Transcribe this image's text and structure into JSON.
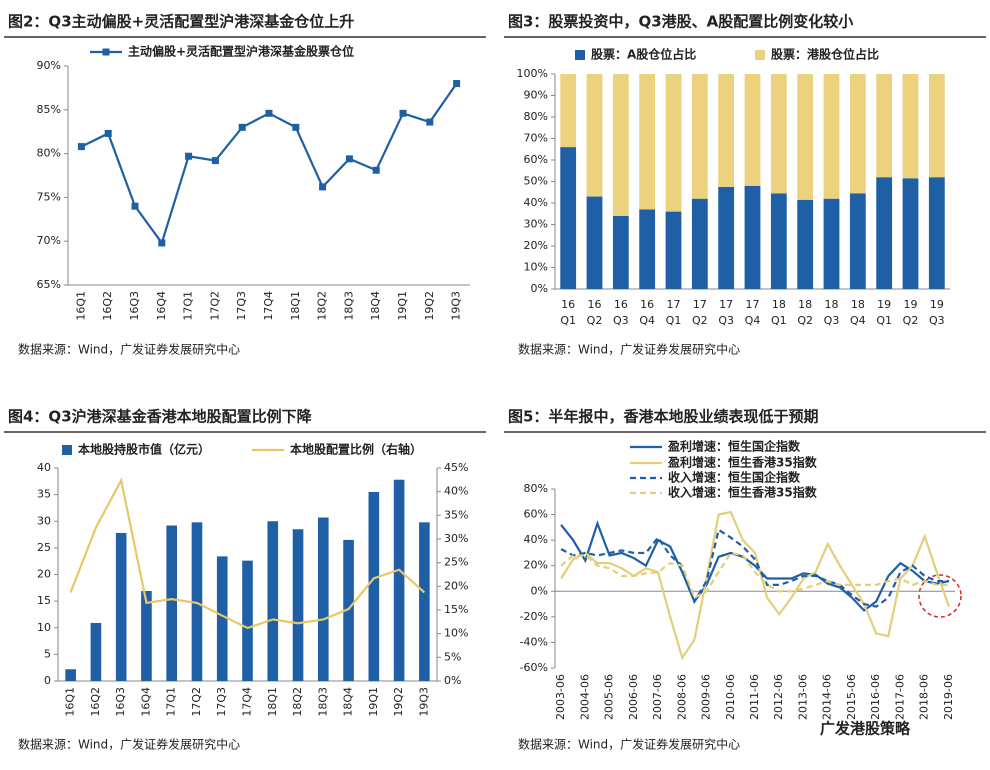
{
  "chart_data": [
    {
      "type": "line",
      "title": "图2：Q3主动偏股+灵活配置型沪港深基金仓位上升",
      "source": "数据来源：Wind，广发证券发展研究中心",
      "legend": "top",
      "categories": [
        "16Q1",
        "16Q2",
        "16Q3",
        "16Q4",
        "17Q1",
        "17Q2",
        "17Q3",
        "17Q4",
        "18Q1",
        "18Q2",
        "18Q3",
        "18Q4",
        "19Q1",
        "19Q2",
        "19Q3"
      ],
      "series": [
        {
          "name": "主动偏股+灵活配置型沪港深基金股票仓位",
          "color": "#1f5fa5",
          "marker": true,
          "values": [
            80.8,
            82.3,
            74,
            69.8,
            79.7,
            79.2,
            83,
            84.6,
            83,
            76.2,
            79.4,
            78.1,
            84.6,
            83.6,
            88
          ]
        }
      ],
      "ylim": [
        65,
        90
      ],
      "yticks": [
        {
          "value": 65,
          "label": "65%"
        },
        {
          "value": 70,
          "label": "70%"
        },
        {
          "value": 75,
          "label": "75%"
        },
        {
          "value": 80,
          "label": "80%"
        },
        {
          "value": 85,
          "label": "85%"
        },
        {
          "value": 90,
          "label": "90%"
        }
      ],
      "grid": false
    },
    {
      "type": "bar",
      "stacked": true,
      "title": "图3：股票投资中，Q3港股、A股配置比例变化较小",
      "source": "数据来源：Wind，广发证券发展研究中心",
      "legend": "top",
      "categories": [
        "16 Q1",
        "16 Q2",
        "16 Q3",
        "16 Q4",
        "17 Q1",
        "17 Q2",
        "17 Q3",
        "17 Q4",
        "18 Q1",
        "18 Q2",
        "18 Q3",
        "18 Q4",
        "19 Q1",
        "19 Q2",
        "19 Q3"
      ],
      "series": [
        {
          "name": "股票：A股仓位占比",
          "color": "#1f5fa5",
          "values": [
            66,
            43,
            34,
            37,
            36,
            42,
            47.5,
            48,
            44.5,
            41.5,
            42,
            44.5,
            52,
            51.5,
            52
          ]
        },
        {
          "name": "股票：港股仓位占比",
          "color": "#ecd27e",
          "values": [
            34,
            57,
            66,
            63,
            64,
            58,
            52.5,
            52,
            55.5,
            58.5,
            58,
            55.5,
            48,
            48.5,
            48
          ]
        }
      ],
      "ylim": [
        0,
        100
      ],
      "yticks": [
        {
          "value": 0,
          "label": "0%"
        },
        {
          "value": 10,
          "label": "10%"
        },
        {
          "value": 20,
          "label": "20%"
        },
        {
          "value": 30,
          "label": "30%"
        },
        {
          "value": 40,
          "label": "40%"
        },
        {
          "value": 50,
          "label": "50%"
        },
        {
          "value": 60,
          "label": "60%"
        },
        {
          "value": 70,
          "label": "70%"
        },
        {
          "value": 80,
          "label": "80%"
        },
        {
          "value": 90,
          "label": "90%"
        },
        {
          "value": 100,
          "label": "100%"
        }
      ],
      "grid": false
    },
    {
      "type": "combo",
      "title": "图4：Q3沪港深基金香港本地股配置比例下降",
      "source": "数据来源：Wind，广发证券发展研究中心",
      "legend": "top",
      "categories": [
        "16Q1",
        "16Q2",
        "16Q3",
        "16Q4",
        "17Q1",
        "17Q2",
        "17Q3",
        "17Q4",
        "18Q1",
        "18Q2",
        "18Q3",
        "18Q4",
        "19Q1",
        "19Q2",
        "19Q3"
      ],
      "series": [
        {
          "name": "本地股持股市值（亿元）",
          "kind": "bar",
          "color": "#1f5fa5",
          "values": [
            2.2,
            10.9,
            27.8,
            16.9,
            29.2,
            29.8,
            23.4,
            22.6,
            30,
            28.5,
            30.7,
            26.5,
            35.5,
            37.8,
            29.8
          ]
        },
        {
          "name": "本地股配置比例（右轴）",
          "kind": "line",
          "axis": "y2",
          "color": "#e8c866",
          "marker": true,
          "values": [
            18.7,
            32.4,
            42.4,
            16.5,
            17.3,
            16.5,
            13.8,
            11.2,
            13,
            12.2,
            13,
            15.2,
            21.7,
            23.5,
            18.7
          ]
        }
      ],
      "ylim": [
        0,
        40
      ],
      "yticks": [
        0,
        5,
        10,
        15,
        20,
        25,
        30,
        35,
        40
      ],
      "y2lim": [
        0,
        45
      ],
      "y2ticks": [
        {
          "value": 0,
          "label": "0%"
        },
        {
          "value": 5,
          "label": "5%"
        },
        {
          "value": 10,
          "label": "10%"
        },
        {
          "value": 15,
          "label": "15%"
        },
        {
          "value": 20,
          "label": "20%"
        },
        {
          "value": 25,
          "label": "25%"
        },
        {
          "value": 30,
          "label": "30%"
        },
        {
          "value": 35,
          "label": "35%"
        },
        {
          "value": 40,
          "label": "40%"
        },
        {
          "value": 45,
          "label": "45%"
        }
      ],
      "grid": false
    },
    {
      "type": "line",
      "title": "图5：半年报中，香港本地股业绩表现低于预期",
      "source": "数据来源：Wind，广发证券发展研究中心",
      "watermark": "广发港股策略",
      "legend": "upper left",
      "categories": [
        "2003-06",
        null,
        "2004-06",
        null,
        "2005-06",
        null,
        "2006-06",
        null,
        "2007-06",
        null,
        "2008-06",
        null,
        "2009-06",
        null,
        "2010-06",
        null,
        "2011-06",
        null,
        "2012-06",
        null,
        "2013-06",
        null,
        "2014-06",
        null,
        "2015-06",
        null,
        "2016-06",
        null,
        "2017-06",
        null,
        "2018-06",
        null,
        "2019-06"
      ],
      "series": [
        {
          "name": "盈利增速：恒生国企指数",
          "color": "#1f5fa5",
          "dash": false,
          "values": [
            52,
            40,
            24,
            53,
            28,
            30,
            26,
            20,
            40,
            35,
            15,
            -8,
            5,
            27,
            30,
            27,
            20,
            10,
            10,
            10,
            14,
            13,
            6,
            3,
            -5,
            -15,
            -8,
            12,
            22,
            16,
            8,
            6,
            8
          ]
        },
        {
          "name": "盈利增速：恒生香港35指数",
          "color": "#e3cf7a",
          "dash": false,
          "values": [
            10,
            25,
            30,
            22,
            22,
            18,
            12,
            18,
            15,
            -20,
            -52,
            -38,
            10,
            60,
            62,
            40,
            30,
            -5,
            -18,
            -5,
            10,
            15,
            37,
            20,
            5,
            -10,
            -33,
            -35,
            10,
            20,
            43,
            15,
            -12
          ]
        },
        {
          "name": "收入增速：恒生国企指数",
          "color": "#1f5fa5",
          "dash": true,
          "values": [
            33,
            28,
            30,
            28,
            30,
            32,
            30,
            30,
            42,
            28,
            20,
            -8,
            8,
            48,
            42,
            35,
            25,
            5,
            5,
            8,
            12,
            12,
            8,
            5,
            -3,
            -10,
            -12,
            -5,
            15,
            20,
            12,
            8,
            8
          ]
        },
        {
          "name": "收入增速：恒生香港35指数",
          "color": "#e3cf7a",
          "dash": true,
          "values": [
            20,
            28,
            28,
            20,
            18,
            12,
            12,
            14,
            15,
            22,
            20,
            -5,
            0,
            15,
            30,
            28,
            15,
            5,
            0,
            0,
            2,
            5,
            8,
            5,
            5,
            5,
            5,
            8,
            10,
            5,
            8,
            5,
            5
          ]
        }
      ],
      "ylim": [
        -60,
        80
      ],
      "yticks": [
        {
          "value": -60,
          "label": "-60%"
        },
        {
          "value": -40,
          "label": "-40%"
        },
        {
          "value": -20,
          "label": "-20%"
        },
        {
          "value": 0,
          "label": "0%"
        },
        {
          "value": 20,
          "label": "20%"
        },
        {
          "value": 40,
          "label": "40%"
        },
        {
          "value": 60,
          "label": "60%"
        },
        {
          "value": 80,
          "label": "80%"
        }
      ],
      "grid": false
    }
  ]
}
